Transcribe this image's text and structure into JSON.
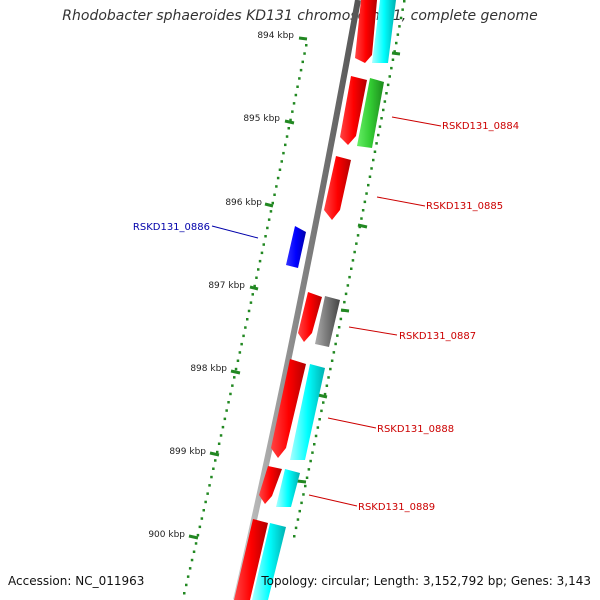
{
  "title": "Rhodobacter sphaeroides KD131 chromosome 1, complete genome",
  "footer": {
    "accession": "Accession: NC_011963",
    "summary": "Topology: circular; Length: 3,152,792 bp; Genes: 3,143"
  },
  "kbp_ticks": [
    "894 kbp",
    "895 kbp",
    "896 kbp",
    "897 kbp",
    "898 kbp",
    "899 kbp",
    "900 kbp"
  ],
  "gene_labels": [
    {
      "text": "RSKD131_0884",
      "color": "#cc0000"
    },
    {
      "text": "RSKD131_0885",
      "color": "#cc0000"
    },
    {
      "text": "RSKD131_0886",
      "color": "#0000aa"
    },
    {
      "text": "RSKD131_0887",
      "color": "#cc0000"
    },
    {
      "text": "RSKD131_0888",
      "color": "#cc0000"
    },
    {
      "text": "RSKD131_0889",
      "color": "#cc0000"
    }
  ],
  "colors": {
    "cds": "#ff0000",
    "rna": "#00ffff",
    "green_feature": "#33cc33",
    "grey_feature": "#777777",
    "reverse_gene": "#0000ff",
    "tick": "#228822",
    "backbone": "#888888"
  }
}
